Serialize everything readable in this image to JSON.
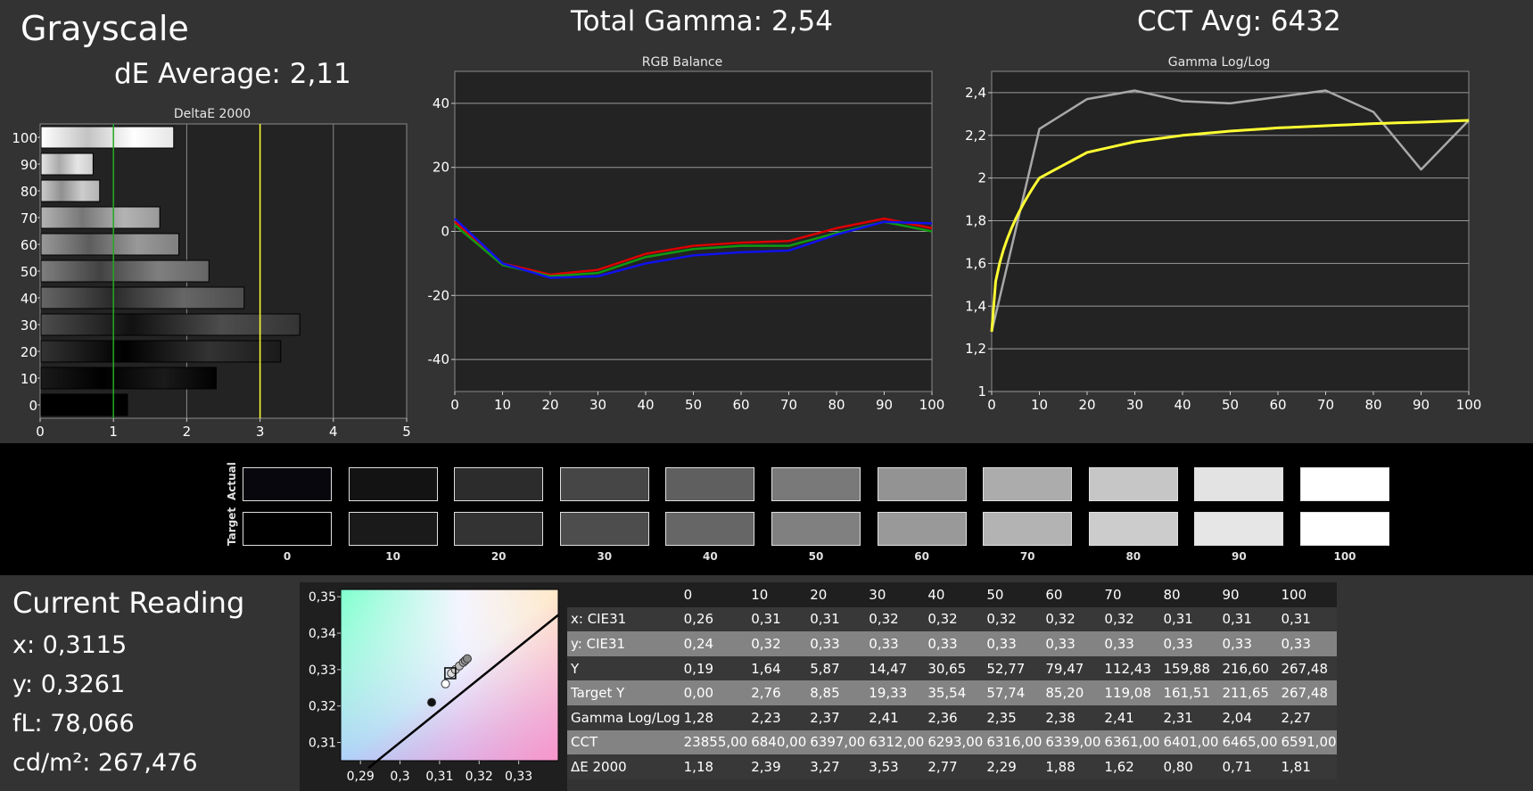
{
  "header": {
    "title": "Grayscale",
    "de_average": "dE Average: 2,11",
    "total_gamma": "Total Gamma: 2,54",
    "cct_avg": "CCT Avg: 6432"
  },
  "chart_data": [
    {
      "type": "bar",
      "title": "DeltaE 2000",
      "orientation": "horizontal",
      "categories": [
        "100",
        "90",
        "80",
        "70",
        "60",
        "50",
        "40",
        "30",
        "20",
        "10",
        "0"
      ],
      "values": [
        1.81,
        0.71,
        0.8,
        1.62,
        1.88,
        2.29,
        2.77,
        3.53,
        3.27,
        2.39,
        1.18
      ],
      "xlim": [
        0,
        5
      ],
      "xticks": [
        "0",
        "1",
        "2",
        "3",
        "4",
        "5"
      ],
      "reference_lines": [
        {
          "x": 1,
          "color": "#22aa22"
        },
        {
          "x": 3,
          "color": "#ffff33"
        }
      ]
    },
    {
      "type": "line",
      "title": "RGB Balance",
      "x": [
        0,
        10,
        20,
        30,
        40,
        50,
        60,
        70,
        80,
        90,
        100
      ],
      "xticks": [
        "0",
        "10",
        "20",
        "30",
        "40",
        "50",
        "60",
        "70",
        "80",
        "90",
        "100"
      ],
      "ylim": [
        -50,
        50
      ],
      "yticks": [
        "40",
        "20",
        "0",
        "-20",
        "-40"
      ],
      "series": [
        {
          "color": "#dd0000",
          "values": [
            3,
            -10,
            -13.5,
            -12,
            -7,
            -4.5,
            -3.5,
            -3,
            1,
            4,
            1
          ]
        },
        {
          "color": "#119911",
          "values": [
            2,
            -10.5,
            -14,
            -13,
            -8,
            -5.5,
            -4.5,
            -4.5,
            -0.5,
            3,
            0
          ]
        },
        {
          "color": "#1111ee",
          "values": [
            4,
            -10,
            -14.5,
            -14,
            -10,
            -7.5,
            -6.5,
            -6,
            -1,
            3,
            2.5
          ]
        }
      ]
    },
    {
      "type": "line",
      "title": "Gamma Log/Log",
      "x": [
        0,
        10,
        20,
        30,
        40,
        50,
        60,
        70,
        80,
        90,
        100
      ],
      "xticks": [
        "0",
        "10",
        "20",
        "30",
        "40",
        "50",
        "60",
        "70",
        "80",
        "90",
        "100"
      ],
      "ylim": [
        1,
        2.5
      ],
      "yticks": [
        "2,4",
        "2,2",
        "2",
        "1,8",
        "1,6",
        "1,4",
        "1,2",
        "1"
      ],
      "series": [
        {
          "color": "#a8a8a8",
          "values": [
            1.28,
            2.23,
            2.37,
            2.41,
            2.36,
            2.35,
            2.38,
            2.41,
            2.31,
            2.04,
            2.27
          ]
        },
        {
          "color": "#ffff33",
          "target_curve": true,
          "values": [
            1.28,
            2.0,
            2.12,
            2.17,
            2.2,
            2.22,
            2.235,
            2.245,
            2.255,
            2.262,
            2.27
          ]
        }
      ]
    },
    {
      "type": "scatter",
      "title": "",
      "xlim": [
        0.285,
        0.34
      ],
      "ylim": [
        0.305,
        0.352
      ],
      "xticks": [
        "0,29",
        "0,3",
        "0,31",
        "0,32",
        "0,33"
      ],
      "yticks": [
        "0,35",
        "0,34",
        "0,33",
        "0,32",
        "0,31"
      ],
      "points": [
        {
          "x": 0.308,
          "y": 0.321,
          "fill": "#111111"
        },
        {
          "x": 0.3115,
          "y": 0.3261,
          "fill": "#ffffff"
        },
        {
          "x": 0.313,
          "y": 0.329,
          "fill": "#dddddd"
        },
        {
          "x": 0.314,
          "y": 0.33,
          "fill": "#cccccc"
        },
        {
          "x": 0.315,
          "y": 0.331,
          "fill": "#bbbbbb"
        },
        {
          "x": 0.316,
          "y": 0.332,
          "fill": "#aaaaaa"
        },
        {
          "x": 0.3165,
          "y": 0.3325,
          "fill": "#999999"
        },
        {
          "x": 0.317,
          "y": 0.333,
          "fill": "#888888"
        }
      ],
      "target": {
        "x": 0.3127,
        "y": 0.329
      },
      "planckian_line": [
        [
          0.292,
          0.303
        ],
        [
          0.34,
          0.345
        ]
      ]
    }
  ],
  "swatches": {
    "actual_label": "Actual",
    "target_label": "Target",
    "labels": [
      "0",
      "10",
      "20",
      "30",
      "40",
      "50",
      "60",
      "70",
      "80",
      "90",
      "100"
    ],
    "actual_colors": [
      "#07070d",
      "#131313",
      "#2c2c2c",
      "#464646",
      "#5f5f5f",
      "#797979",
      "#939393",
      "#acacac",
      "#c6c6c6",
      "#e3e3e3",
      "#ffffff"
    ],
    "target_colors": [
      "#000000",
      "#1a1a1a",
      "#333333",
      "#4d4d4d",
      "#666666",
      "#808080",
      "#999999",
      "#b3b3b3",
      "#cccccc",
      "#e6e6e6",
      "#ffffff"
    ]
  },
  "reading": {
    "title": "Current Reading",
    "x": "x: 0,3115",
    "y": "y: 0,3261",
    "fl": "fL: 78,066",
    "cdm2": "cd/m²: 267,476"
  },
  "table": {
    "columns": [
      "0",
      "10",
      "20",
      "30",
      "40",
      "50",
      "60",
      "70",
      "80",
      "90",
      "100"
    ],
    "rows": [
      {
        "label": "x: CIE31",
        "values": [
          "0,26",
          "0,31",
          "0,31",
          "0,32",
          "0,32",
          "0,32",
          "0,32",
          "0,32",
          "0,31",
          "0,31",
          "0,31"
        ]
      },
      {
        "label": "y: CIE31",
        "values": [
          "0,24",
          "0,32",
          "0,33",
          "0,33",
          "0,33",
          "0,33",
          "0,33",
          "0,33",
          "0,33",
          "0,33",
          "0,33"
        ]
      },
      {
        "label": "Y",
        "values": [
          "0,19",
          "1,64",
          "5,87",
          "14,47",
          "30,65",
          "52,77",
          "79,47",
          "112,43",
          "159,88",
          "216,60",
          "267,48"
        ]
      },
      {
        "label": "Target Y",
        "values": [
          "0,00",
          "2,76",
          "8,85",
          "19,33",
          "35,54",
          "57,74",
          "85,20",
          "119,08",
          "161,51",
          "211,65",
          "267,48"
        ]
      },
      {
        "label": "Gamma Log/Log",
        "values": [
          "1,28",
          "2,23",
          "2,37",
          "2,41",
          "2,36",
          "2,35",
          "2,38",
          "2,41",
          "2,31",
          "2,04",
          "2,27"
        ]
      },
      {
        "label": "CCT",
        "values": [
          "23855,00",
          "6840,00",
          "6397,00",
          "6312,00",
          "6293,00",
          "6316,00",
          "6339,00",
          "6361,00",
          "6401,00",
          "6465,00",
          "6591,00"
        ]
      },
      {
        "label": "ΔE 2000",
        "values": [
          "1,18",
          "2,39",
          "3,27",
          "3,53",
          "2,77",
          "2,29",
          "1,88",
          "1,62",
          "0,80",
          "0,71",
          "1,81"
        ]
      }
    ]
  }
}
